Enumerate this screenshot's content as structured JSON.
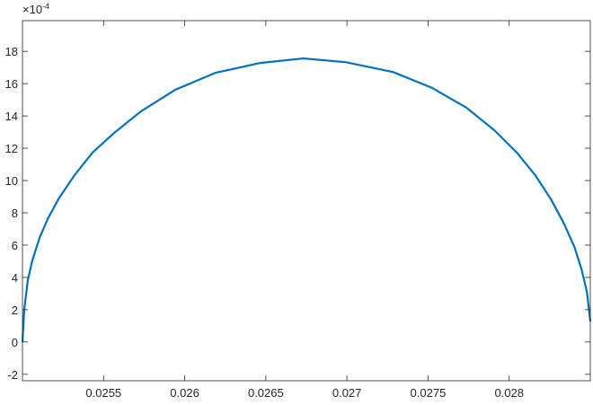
{
  "chart_data": {
    "type": "line",
    "title": "",
    "xlabel": "",
    "ylabel": "",
    "y_exponent_label": "×10",
    "y_exponent_power": "-4",
    "xlim": [
      0.025,
      0.0285
    ],
    "ylim": [
      -2.4,
      19.9
    ],
    "grid": false,
    "x_ticks": [
      0.0255,
      0.026,
      0.0265,
      0.027,
      0.0275,
      0.028
    ],
    "x_tick_labels": [
      "0.0255",
      "0.026",
      "0.0265",
      "0.027",
      "0.0275",
      "0.028"
    ],
    "y_ticks": [
      -2,
      0,
      2,
      4,
      6,
      8,
      10,
      12,
      14,
      16,
      18
    ],
    "y_tick_labels": [
      "-2",
      "0",
      "2",
      "4",
      "6",
      "8",
      "10",
      "12",
      "14",
      "16",
      "18"
    ],
    "series": [
      {
        "color": "#0072BD",
        "x": [
          0.025,
          0.025011,
          0.025033,
          0.025061,
          0.025105,
          0.025155,
          0.025227,
          0.025321,
          0.025431,
          0.025564,
          0.02573,
          0.02594,
          0.026189,
          0.026466,
          0.026731,
          0.026991,
          0.027284,
          0.027528,
          0.027738,
          0.027909,
          0.028048,
          0.028164,
          0.028258,
          0.028335,
          0.028402,
          0.028446,
          0.028479,
          0.0285
        ],
        "y": [
          0,
          2.0,
          3.83,
          5.06,
          6.44,
          7.61,
          8.94,
          10.33,
          11.72,
          12.94,
          14.28,
          15.61,
          16.67,
          17.28,
          17.56,
          17.33,
          16.72,
          15.72,
          14.5,
          13.11,
          11.72,
          10.28,
          8.83,
          7.39,
          5.89,
          4.5,
          3.11,
          1.28
        ]
      }
    ]
  }
}
